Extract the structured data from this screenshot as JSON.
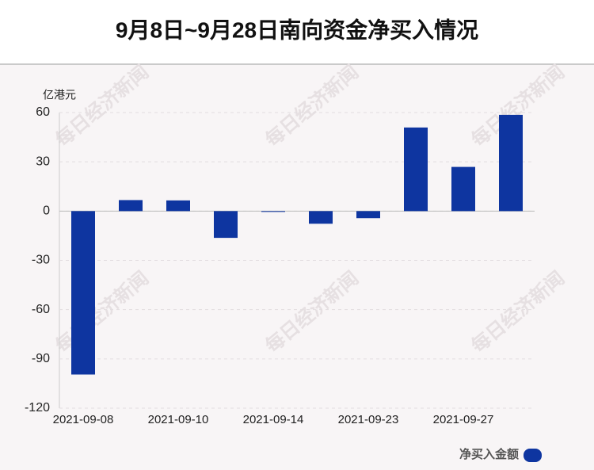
{
  "chart_data": {
    "type": "bar",
    "title": "9月8日~9月28日南向资金净买入情况",
    "y_label": "亿港元",
    "watermark": "每日经济新闻",
    "categories": [
      "2021-09-08",
      null,
      "2021-09-10",
      null,
      "2021-09-14",
      null,
      "2021-09-23",
      null,
      "2021-09-27",
      null
    ],
    "series": [
      {
        "name": "净买入金额",
        "color": "#0e35a0",
        "values": [
          -99.5,
          6.7,
          6.5,
          -16.3,
          -0.5,
          -7.7,
          -4.3,
          50.9,
          26.9,
          58.6
        ]
      }
    ],
    "ylim": [
      -120,
      60
    ],
    "yticks": [
      -120,
      -90,
      -60,
      -30,
      0,
      30,
      60
    ],
    "grid": true
  }
}
